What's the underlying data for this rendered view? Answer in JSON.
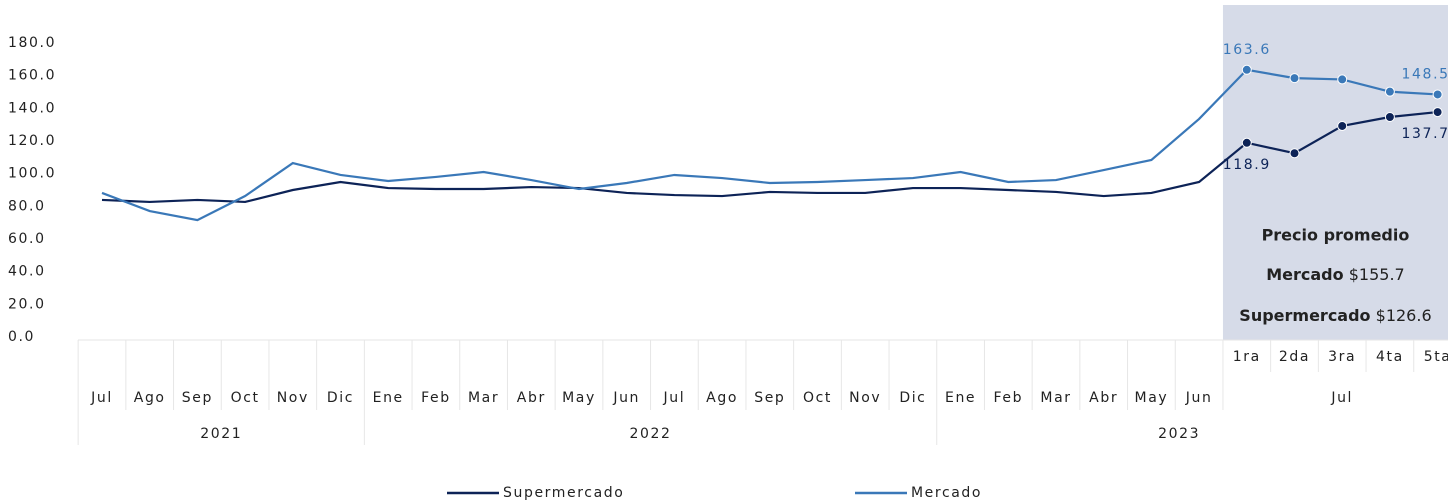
{
  "chart_data": {
    "type": "line",
    "categories": [
      "Jul",
      "Ago",
      "Sep",
      "Oct",
      "Nov",
      "Dic",
      "Ene",
      "Feb",
      "Mar",
      "Abr",
      "May",
      "Jun",
      "Jul",
      "Ago",
      "Sep",
      "Oct",
      "Nov",
      "Dic",
      "Ene",
      "Feb",
      "Mar",
      "Abr",
      "May",
      "Jun",
      "1ra",
      "2da",
      "3ra",
      "4ta",
      "5ta"
    ],
    "category_groups": [
      {
        "label": "Jul",
        "start": 24,
        "end": 28
      }
    ],
    "years": [
      {
        "label": "2021",
        "start": 0,
        "end": 5
      },
      {
        "label": "2022",
        "start": 6,
        "end": 17
      },
      {
        "label": "2023",
        "start": 18,
        "end": 28
      }
    ],
    "series": [
      {
        "name": "Supermercado",
        "color": "#0d2357",
        "values": [
          83.9,
          82.7,
          83.9,
          82.7,
          90.0,
          94.9,
          91.2,
          90.6,
          90.6,
          91.8,
          91.2,
          88.2,
          86.9,
          86.3,
          88.8,
          88.2,
          88.2,
          91.2,
          91.2,
          90.0,
          88.8,
          86.3,
          88.2,
          94.9,
          118.9,
          112.5,
          129.2,
          134.7,
          137.7
        ],
        "value_labels": [
          null,
          null,
          null,
          null,
          null,
          null,
          null,
          null,
          null,
          null,
          null,
          null,
          null,
          null,
          null,
          null,
          null,
          null,
          null,
          null,
          null,
          null,
          null,
          null,
          "118.9",
          null,
          null,
          null,
          "137.7"
        ]
      },
      {
        "name": "Mercado",
        "color": "#3a78b8",
        "values": [
          88.2,
          77.1,
          71.6,
          86.3,
          106.5,
          99.2,
          95.5,
          98.0,
          101.0,
          96.1,
          90.6,
          94.3,
          99.2,
          97.3,
          94.3,
          94.9,
          96.1,
          97.3,
          101.0,
          94.9,
          96.1,
          102.2,
          108.4,
          133.5,
          163.6,
          158.5,
          157.7,
          150.2,
          148.5
        ],
        "value_labels": [
          null,
          null,
          null,
          null,
          null,
          null,
          null,
          null,
          null,
          null,
          null,
          null,
          null,
          null,
          null,
          null,
          null,
          null,
          null,
          null,
          null,
          null,
          null,
          null,
          "163.6",
          null,
          null,
          null,
          "148.5"
        ]
      }
    ],
    "ylim": [
      0,
      180
    ],
    "yticks": [
      {
        "value": 0,
        "label": "0.0"
      },
      {
        "value": 20,
        "label": "20.0"
      },
      {
        "value": 40,
        "label": "40.0"
      },
      {
        "value": 60,
        "label": "60.0"
      },
      {
        "value": 80,
        "label": "80.0"
      },
      {
        "value": 100,
        "label": "100.0"
      },
      {
        "value": 120,
        "label": "120.0"
      },
      {
        "value": 140,
        "label": "140.0"
      },
      {
        "value": 160,
        "label": "160.0"
      },
      {
        "value": 180,
        "label": "180.0"
      }
    ],
    "grid": false,
    "highlight_start": 24,
    "annotation": {
      "title": "Precio promedio",
      "lines": [
        {
          "label": "Mercado",
          "value": "$155.7"
        },
        {
          "label": "Supermercado",
          "value": "$126.6"
        }
      ]
    }
  }
}
